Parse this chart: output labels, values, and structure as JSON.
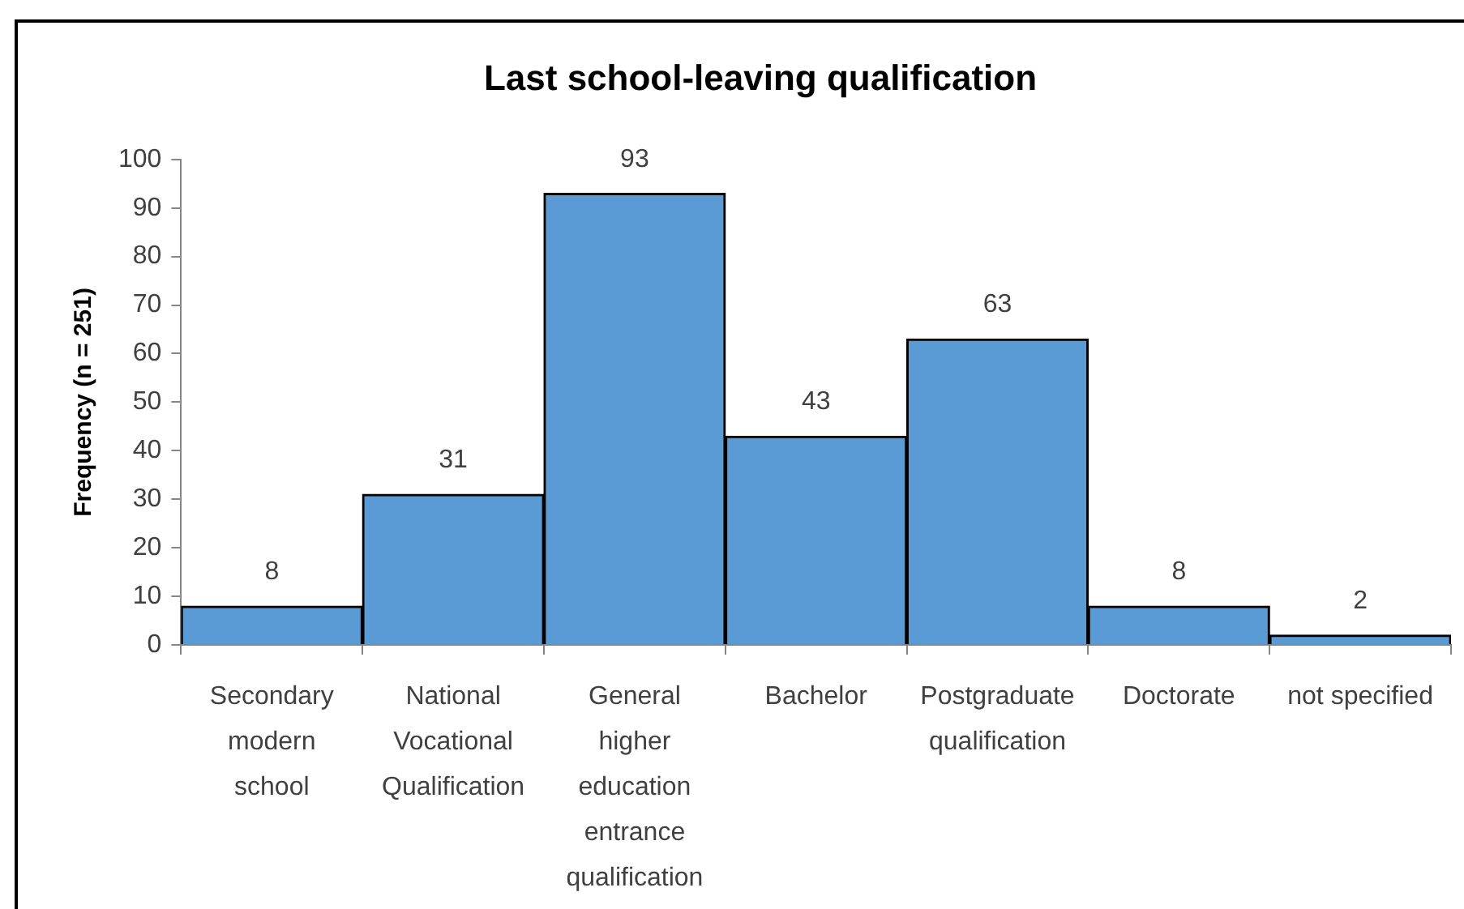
{
  "chart_data": {
    "type": "bar",
    "title": "Last school-leaving qualification",
    "ylabel": "Frequency (n = 251)",
    "categories": [
      "Secondary modern school",
      "National Vocational Qualification",
      "General higher education entrance qualification",
      "Bachelor",
      "Postgraduate qualification",
      "Doctorate",
      "not specified"
    ],
    "values": [
      8,
      31,
      93,
      43,
      63,
      8,
      2
    ],
    "color": "#5b9bd5",
    "ylim": [
      0,
      100
    ],
    "yticks": [
      0,
      10,
      20,
      30,
      40,
      50,
      60,
      70,
      80,
      90,
      100
    ],
    "grid": false,
    "legend": false,
    "data_labels": true
  }
}
